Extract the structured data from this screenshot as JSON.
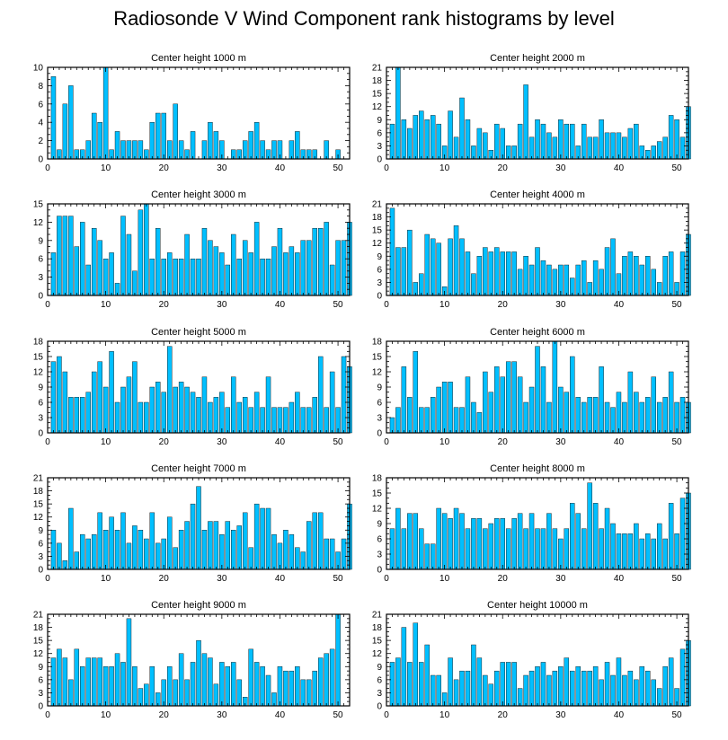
{
  "title": "Radiosonde V Wind Component rank histograms by level",
  "colors": {
    "bar": "#00BFFF",
    "bar_edge": "#000000",
    "axis": "#000000",
    "background": "#FFFFFF"
  },
  "chart_data": [
    {
      "type": "bar",
      "title": "Center height 1000 m",
      "xlim": [
        0,
        52
      ],
      "ylim": [
        0,
        10
      ],
      "xticks": [
        0,
        10,
        20,
        30,
        40,
        50
      ],
      "yticks": [
        0,
        2,
        4,
        6,
        8,
        10
      ],
      "values": [
        9,
        1,
        6,
        8,
        1,
        1,
        2,
        5,
        4,
        10,
        1,
        3,
        2,
        2,
        2,
        2,
        1,
        4,
        5,
        5,
        2,
        6,
        2,
        1,
        3,
        0,
        2,
        4,
        3,
        2,
        0,
        1,
        1,
        2,
        3,
        4,
        2,
        1,
        2,
        2,
        0,
        2,
        3,
        1,
        1,
        1,
        0,
        2,
        0,
        1,
        0
      ]
    },
    {
      "type": "bar",
      "title": "Center height 2000 m",
      "xlim": [
        0,
        52
      ],
      "ylim": [
        0,
        21
      ],
      "xticks": [
        0,
        10,
        20,
        30,
        40,
        50
      ],
      "yticks": [
        0,
        3,
        6,
        9,
        12,
        15,
        18,
        21
      ],
      "values": [
        8,
        21,
        9,
        7,
        10,
        11,
        9,
        10,
        8,
        3,
        11,
        5,
        14,
        9,
        3,
        7,
        6,
        2,
        8,
        7,
        3,
        3,
        8,
        17,
        5,
        9,
        8,
        6,
        5,
        9,
        8,
        8,
        3,
        8,
        5,
        5,
        9,
        6,
        6,
        6,
        5,
        7,
        8,
        3,
        2,
        3,
        4,
        5,
        10,
        9,
        5,
        12
      ]
    },
    {
      "type": "bar",
      "title": "Center height 3000 m",
      "xlim": [
        0,
        52
      ],
      "ylim": [
        0,
        15
      ],
      "xticks": [
        0,
        10,
        20,
        30,
        40,
        50
      ],
      "yticks": [
        0,
        3,
        6,
        9,
        12,
        15
      ],
      "values": [
        7,
        13,
        13,
        13,
        8,
        12,
        5,
        11,
        9,
        6,
        7,
        2,
        13,
        10,
        4,
        14,
        15,
        6,
        11,
        6,
        7,
        6,
        6,
        10,
        6,
        6,
        11,
        9,
        8,
        7,
        5,
        10,
        6,
        9,
        7,
        12,
        6,
        6,
        8,
        11,
        7,
        8,
        7,
        9,
        9,
        11,
        11,
        12,
        5,
        9,
        9,
        12
      ]
    },
    {
      "type": "bar",
      "title": "Center height 4000 m",
      "xlim": [
        0,
        52
      ],
      "ylim": [
        0,
        21
      ],
      "xticks": [
        0,
        10,
        20,
        30,
        40,
        50
      ],
      "yticks": [
        0,
        3,
        6,
        9,
        12,
        15,
        18,
        21
      ],
      "values": [
        20,
        11,
        11,
        15,
        3,
        5,
        14,
        13,
        12,
        2,
        13,
        16,
        13,
        10,
        5,
        9,
        11,
        10,
        11,
        10,
        10,
        10,
        6,
        9,
        7,
        11,
        8,
        7,
        6,
        7,
        7,
        4,
        7,
        8,
        3,
        8,
        6,
        11,
        13,
        5,
        9,
        10,
        9,
        7,
        9,
        6,
        3,
        9,
        10,
        3,
        10,
        14
      ]
    },
    {
      "type": "bar",
      "title": "Center height 5000 m",
      "xlim": [
        0,
        52
      ],
      "ylim": [
        0,
        18
      ],
      "xticks": [
        0,
        10,
        20,
        30,
        40,
        50
      ],
      "yticks": [
        0,
        3,
        6,
        9,
        12,
        15,
        18
      ],
      "values": [
        14,
        15,
        12,
        7,
        7,
        7,
        8,
        12,
        14,
        9,
        16,
        6,
        9,
        11,
        14,
        6,
        6,
        9,
        10,
        8,
        17,
        9,
        10,
        9,
        8,
        7,
        11,
        6,
        7,
        8,
        5,
        11,
        6,
        7,
        5,
        8,
        5,
        11,
        5,
        5,
        5,
        6,
        8,
        5,
        5,
        7,
        15,
        5,
        12,
        5,
        15,
        13
      ]
    },
    {
      "type": "bar",
      "title": "Center height 6000 m",
      "xlim": [
        0,
        52
      ],
      "ylim": [
        0,
        18
      ],
      "xticks": [
        0,
        10,
        20,
        30,
        40,
        50
      ],
      "yticks": [
        0,
        3,
        6,
        9,
        12,
        15,
        18
      ],
      "values": [
        3,
        5,
        13,
        7,
        16,
        5,
        5,
        7,
        9,
        10,
        10,
        5,
        5,
        11,
        6,
        4,
        12,
        8,
        13,
        11,
        14,
        14,
        11,
        6,
        9,
        17,
        13,
        6,
        18,
        9,
        8,
        15,
        7,
        6,
        7,
        7,
        13,
        6,
        5,
        8,
        6,
        12,
        8,
        6,
        7,
        11,
        6,
        7,
        12,
        6,
        7,
        6
      ]
    },
    {
      "type": "bar",
      "title": "Center height 7000 m",
      "xlim": [
        0,
        52
      ],
      "ylim": [
        0,
        21
      ],
      "xticks": [
        0,
        10,
        20,
        30,
        40,
        50
      ],
      "yticks": [
        0,
        3,
        6,
        9,
        12,
        15,
        18,
        21
      ],
      "values": [
        9,
        6,
        2,
        14,
        4,
        8,
        7,
        8,
        13,
        9,
        12,
        9,
        13,
        6,
        10,
        9,
        7,
        13,
        6,
        7,
        12,
        5,
        9,
        11,
        15,
        19,
        9,
        11,
        11,
        8,
        11,
        9,
        10,
        13,
        5,
        15,
        14,
        14,
        8,
        6,
        9,
        8,
        5,
        4,
        11,
        13,
        13,
        7,
        7,
        4,
        7,
        15
      ]
    },
    {
      "type": "bar",
      "title": "Center height 8000 m",
      "xlim": [
        0,
        52
      ],
      "ylim": [
        0,
        18
      ],
      "xticks": [
        0,
        10,
        20,
        30,
        40,
        50
      ],
      "yticks": [
        0,
        3,
        6,
        9,
        12,
        15,
        18
      ],
      "values": [
        8,
        12,
        8,
        11,
        11,
        8,
        5,
        5,
        12,
        11,
        10,
        12,
        11,
        8,
        10,
        10,
        8,
        9,
        10,
        10,
        8,
        10,
        11,
        8,
        11,
        8,
        8,
        11,
        8,
        6,
        8,
        13,
        11,
        8,
        17,
        13,
        8,
        12,
        9,
        7,
        7,
        7,
        9,
        6,
        7,
        6,
        9,
        6,
        13,
        7,
        14,
        15
      ]
    },
    {
      "type": "bar",
      "title": "Center height 9000 m",
      "xlim": [
        0,
        52
      ],
      "ylim": [
        0,
        21
      ],
      "xticks": [
        0,
        10,
        20,
        30,
        40,
        50
      ],
      "yticks": [
        0,
        3,
        6,
        9,
        12,
        15,
        18,
        21
      ],
      "values": [
        11,
        13,
        11,
        6,
        13,
        9,
        11,
        11,
        11,
        9,
        9,
        12,
        10,
        20,
        9,
        4,
        5,
        9,
        3,
        6,
        9,
        6,
        12,
        6,
        10,
        15,
        12,
        11,
        5,
        10,
        9,
        10,
        6,
        2,
        13,
        10,
        9,
        7,
        3,
        9,
        8,
        8,
        9,
        6,
        6,
        8,
        11,
        12,
        13,
        21,
        0,
        0
      ]
    },
    {
      "type": "bar",
      "title": "Center height 10000 m",
      "xlim": [
        0,
        52
      ],
      "ylim": [
        0,
        21
      ],
      "xticks": [
        0,
        10,
        20,
        30,
        40,
        50
      ],
      "yticks": [
        0,
        3,
        6,
        9,
        12,
        15,
        18,
        21
      ],
      "values": [
        10,
        11,
        18,
        10,
        19,
        10,
        14,
        7,
        7,
        3,
        11,
        6,
        8,
        8,
        14,
        11,
        7,
        5,
        8,
        10,
        10,
        10,
        4,
        7,
        8,
        9,
        10,
        7,
        8,
        9,
        11,
        8,
        9,
        8,
        8,
        9,
        6,
        10,
        7,
        11,
        7,
        8,
        6,
        9,
        8,
        6,
        4,
        9,
        11,
        4,
        13,
        15
      ]
    }
  ]
}
